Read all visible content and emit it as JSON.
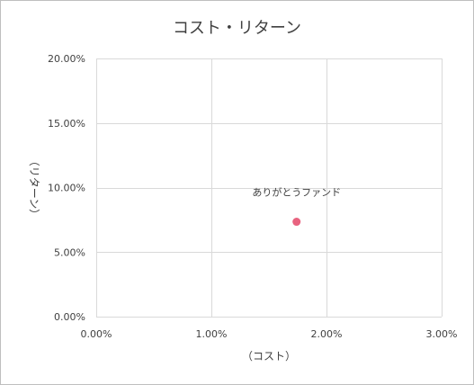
{
  "chart_data": {
    "type": "scatter",
    "title": "コスト・リターン",
    "xlabel": "（コスト）",
    "ylabel": "（リターン）",
    "xlim": [
      0,
      0.03
    ],
    "ylim": [
      0,
      0.2
    ],
    "x_ticks": [
      0,
      0.01,
      0.02,
      0.03
    ],
    "x_tick_labels": [
      "0.00%",
      "1.00%",
      "2.00%",
      "3.00%"
    ],
    "y_ticks": [
      0,
      0.05,
      0.1,
      0.15,
      0.2
    ],
    "y_tick_labels": [
      "0.00%",
      "5.00%",
      "10.00%",
      "15.00%",
      "20.00%"
    ],
    "grid": true,
    "points": [
      {
        "label": "ありがとうファンド",
        "x": 0.0174,
        "y": 0.0735
      }
    ],
    "colors": {
      "point": "#e8637f",
      "grid": "#d9d9d9",
      "text": "#404040"
    }
  }
}
